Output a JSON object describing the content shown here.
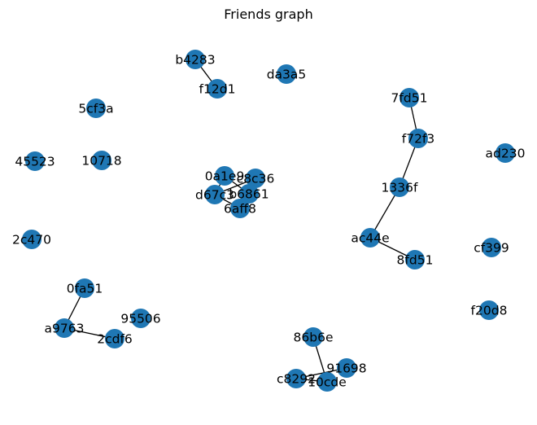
{
  "title": "Friends graph",
  "colors": {
    "node": "#1f77b4",
    "edge": "#000000",
    "label": "#000000",
    "background": "#ffffff"
  },
  "nodes": [
    {
      "id": "b4283",
      "label": "b4283"
    },
    {
      "id": "f12d1",
      "label": "f12d1"
    },
    {
      "id": "da3a5",
      "label": "da3a5"
    },
    {
      "id": "5cf3a",
      "label": "5cf3a"
    },
    {
      "id": "45523",
      "label": "45523"
    },
    {
      "id": "10718",
      "label": "10718"
    },
    {
      "id": "0a1e9",
      "label": "0a1e9"
    },
    {
      "id": "c8c36",
      "label": "c8c36"
    },
    {
      "id": "d67c3",
      "label": "d67c3"
    },
    {
      "id": "b6861",
      "label": "b6861"
    },
    {
      "id": "6aff8",
      "label": "6aff8"
    },
    {
      "id": "7fd51",
      "label": "7fd51"
    },
    {
      "id": "f72f3",
      "label": "f72f3"
    },
    {
      "id": "ad230",
      "label": "ad230"
    },
    {
      "id": "1336f",
      "label": "1336f"
    },
    {
      "id": "ac44e",
      "label": "ac44e"
    },
    {
      "id": "8fd51",
      "label": "8fd51"
    },
    {
      "id": "cf399",
      "label": "cf399"
    },
    {
      "id": "2c470",
      "label": "2c470"
    },
    {
      "id": "0fa51",
      "label": "0fa51"
    },
    {
      "id": "95506",
      "label": "95506"
    },
    {
      "id": "a9763",
      "label": "a9763"
    },
    {
      "id": "2cdf6",
      "label": "2cdf6"
    },
    {
      "id": "f20d8",
      "label": "f20d8"
    },
    {
      "id": "86b6e",
      "label": "86b6e"
    },
    {
      "id": "91698",
      "label": "91698"
    },
    {
      "id": "c8292",
      "label": "c8292"
    },
    {
      "id": "10cde",
      "label": "10cde"
    }
  ],
  "edges": [
    {
      "source": "b4283",
      "target": "f12d1"
    },
    {
      "source": "7fd51",
      "target": "f72f3"
    },
    {
      "source": "f72f3",
      "target": "1336f"
    },
    {
      "source": "1336f",
      "target": "ac44e"
    },
    {
      "source": "ac44e",
      "target": "8fd51"
    },
    {
      "source": "0fa51",
      "target": "a9763"
    },
    {
      "source": "a9763",
      "target": "2cdf6"
    },
    {
      "source": "86b6e",
      "target": "10cde"
    },
    {
      "source": "c8292",
      "target": "91698"
    },
    {
      "source": "c8292",
      "target": "10cde"
    },
    {
      "source": "0a1e9",
      "target": "d67c3"
    },
    {
      "source": "0a1e9",
      "target": "b6861"
    },
    {
      "source": "c8c36",
      "target": "d67c3"
    },
    {
      "source": "c8c36",
      "target": "b6861"
    },
    {
      "source": "d67c3",
      "target": "6aff8"
    },
    {
      "source": "b6861",
      "target": "6aff8"
    }
  ]
}
